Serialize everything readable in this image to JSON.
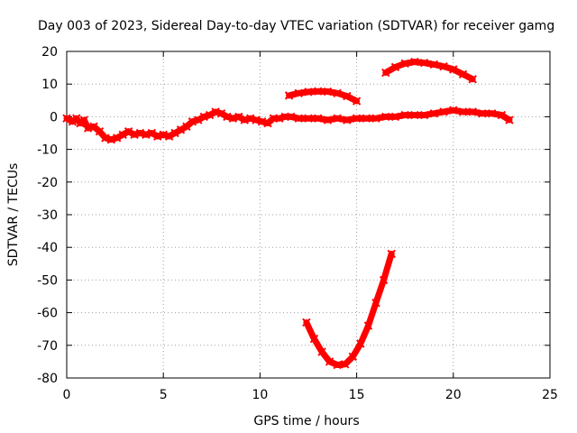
{
  "chart_data": {
    "type": "scatter",
    "title": "Day 003 of 2023, Sidereal Day-to-day VTEC variation (SDTVAR) for receiver gamg",
    "xlabel": "GPS time / hours",
    "ylabel": "SDTVAR / TECUs",
    "xlim": [
      0,
      25
    ],
    "ylim": [
      -80,
      20
    ],
    "xticks": [
      0,
      5,
      10,
      15,
      20,
      25
    ],
    "yticks": [
      -80,
      -70,
      -60,
      -50,
      -40,
      -30,
      -20,
      -10,
      0,
      10,
      20
    ],
    "xtick_labels": [
      "0",
      "5",
      "10",
      "15",
      "20",
      "25"
    ],
    "ytick_labels": [
      "-80",
      "-70",
      "-60",
      "-50",
      "-40",
      "-30",
      "-20",
      "-10",
      "0",
      "10",
      "20"
    ],
    "grid": true,
    "marker_color": "#ff0000",
    "series": [
      {
        "name": "main-trace",
        "x": [
          0.0,
          0.3,
          0.5,
          0.7,
          0.9,
          1.1,
          1.4,
          1.7,
          2.0,
          2.3,
          2.6,
          2.9,
          3.2,
          3.5,
          3.8,
          4.1,
          4.4,
          4.7,
          5.0,
          5.3,
          5.6,
          5.9,
          6.2,
          6.5,
          6.8,
          7.1,
          7.4,
          7.7,
          8.0,
          8.3,
          8.6,
          8.9,
          9.2,
          9.5,
          9.8,
          10.1,
          10.4,
          10.7,
          11.0,
          11.3,
          11.6,
          12.0,
          12.5,
          13.0,
          13.5,
          14.0,
          14.5,
          15.0,
          15.5,
          16.0,
          16.5,
          17.0,
          17.5,
          18.0,
          18.5,
          19.0,
          19.5,
          20.0,
          20.5,
          21.0,
          21.5,
          22.0,
          22.5,
          22.9
        ],
        "y": [
          -0.5,
          -1.5,
          -0.5,
          -2.0,
          -1.0,
          -3.5,
          -3.0,
          -4.5,
          -6.5,
          -7.0,
          -6.5,
          -5.5,
          -4.5,
          -5.5,
          -5.0,
          -5.5,
          -5.0,
          -6.0,
          -5.5,
          -6.0,
          -5.0,
          -4.0,
          -3.0,
          -1.5,
          -1.0,
          0.0,
          0.5,
          1.5,
          1.0,
          0.0,
          -0.5,
          0.0,
          -1.0,
          -0.5,
          -1.0,
          -1.5,
          -2.0,
          -0.5,
          -0.5,
          0.0,
          0.0,
          -0.5,
          -0.5,
          -0.5,
          -1.0,
          -0.5,
          -1.0,
          -0.5,
          -0.5,
          -0.5,
          0.0,
          0.0,
          0.5,
          0.5,
          0.5,
          1.0,
          1.5,
          2.0,
          1.5,
          1.5,
          1.0,
          1.0,
          0.5,
          -1.0
        ]
      },
      {
        "name": "upper-arc-1",
        "x": [
          11.5,
          12.0,
          12.5,
          13.0,
          13.5,
          14.0,
          14.5,
          15.0
        ],
        "y": [
          6.5,
          7.2,
          7.6,
          7.8,
          7.7,
          7.2,
          6.3,
          4.8
        ]
      },
      {
        "name": "upper-arc-2",
        "x": [
          16.5,
          17.0,
          17.5,
          18.0,
          18.5,
          19.0,
          19.5,
          20.0,
          20.5,
          21.0
        ],
        "y": [
          13.5,
          15.2,
          16.3,
          16.8,
          16.5,
          16.0,
          15.4,
          14.5,
          13.0,
          11.5
        ]
      },
      {
        "name": "lower-arc",
        "x": [
          12.4,
          12.8,
          13.2,
          13.6,
          14.0,
          14.4,
          14.8,
          15.2,
          15.6,
          16.0,
          16.4,
          16.8
        ],
        "y": [
          -63.0,
          -68.0,
          -72.0,
          -75.0,
          -76.0,
          -75.8,
          -73.5,
          -69.5,
          -64.0,
          -57.0,
          -50.0,
          -42.0
        ]
      }
    ]
  }
}
